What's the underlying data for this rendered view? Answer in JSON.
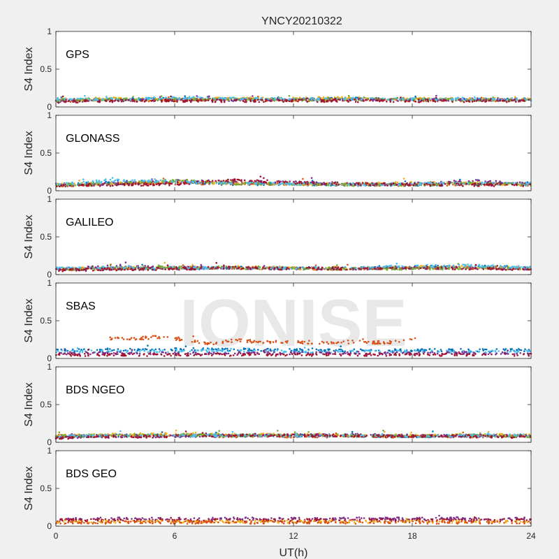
{
  "chart_data": {
    "type": "scatter",
    "title": "YNCY20210322",
    "xlabel": "UT(h)",
    "ylabel": "S4 Index",
    "xlim": [
      0,
      24
    ],
    "ylim": [
      0,
      1
    ],
    "xticks": [
      0,
      6,
      12,
      18,
      24
    ],
    "yticks": [
      0,
      0.5,
      1
    ],
    "ytick_labels": [
      "0",
      "0.5",
      "1"
    ],
    "grid": false,
    "watermark": "IONISE",
    "colors": [
      "#0072bd",
      "#d95319",
      "#edb120",
      "#7e2f8e",
      "#77ac30",
      "#4dbeee",
      "#a2142f"
    ],
    "panels": [
      {
        "label": "GPS",
        "series": [
          {
            "color": "#0072bd",
            "x": [
              0,
              3,
              6,
              9,
              12,
              15,
              18,
              21,
              24
            ],
            "y": [
              0.09,
              0.1,
              0.11,
              0.1,
              0.1,
              0.11,
              0.1,
              0.1,
              0.1
            ]
          },
          {
            "color": "#d95319",
            "x": [
              0,
              3,
              6,
              9,
              12,
              15,
              18,
              21,
              24
            ],
            "y": [
              0.08,
              0.09,
              0.09,
              0.1,
              0.09,
              0.1,
              0.09,
              0.09,
              0.09
            ]
          },
          {
            "color": "#edb120",
            "x": [
              0,
              3,
              6,
              9,
              12,
              15,
              18,
              21,
              24
            ],
            "y": [
              0.1,
              0.11,
              0.1,
              0.11,
              0.11,
              0.12,
              0.11,
              0.11,
              0.1
            ]
          },
          {
            "color": "#7e2f8e",
            "x": [
              0,
              3,
              6,
              9,
              12,
              15,
              18,
              21,
              24
            ],
            "y": [
              0.08,
              0.09,
              0.09,
              0.09,
              0.1,
              0.1,
              0.09,
              0.1,
              0.09
            ]
          },
          {
            "color": "#77ac30",
            "x": [
              0,
              3,
              6,
              9,
              12,
              15,
              18,
              21,
              24
            ],
            "y": [
              0.09,
              0.1,
              0.1,
              0.1,
              0.09,
              0.1,
              0.1,
              0.09,
              0.09
            ]
          },
          {
            "color": "#4dbeee",
            "x": [
              0,
              3,
              6,
              9,
              12,
              15,
              18,
              21,
              24
            ],
            "y": [
              0.1,
              0.1,
              0.12,
              0.11,
              0.1,
              0.11,
              0.1,
              0.1,
              0.1
            ]
          },
          {
            "color": "#a2142f",
            "x": [
              0,
              3,
              6,
              9,
              12,
              15,
              18,
              21,
              24
            ],
            "y": [
              0.07,
              0.08,
              0.08,
              0.08,
              0.08,
              0.08,
              0.08,
              0.08,
              0.08
            ]
          }
        ]
      },
      {
        "label": "GLONASS",
        "series": [
          {
            "color": "#0072bd",
            "x": [
              0,
              3,
              6,
              9,
              12,
              15,
              18,
              21,
              24
            ],
            "y": [
              0.08,
              0.12,
              0.11,
              0.09,
              0.09,
              0.08,
              0.08,
              0.09,
              0.1
            ]
          },
          {
            "color": "#d95319",
            "x": [
              0,
              3,
              6,
              9,
              12,
              15,
              18,
              21,
              24
            ],
            "y": [
              0.07,
              0.09,
              0.1,
              0.1,
              0.09,
              0.08,
              0.08,
              0.09,
              0.08
            ]
          },
          {
            "color": "#edb120",
            "x": [
              0,
              3,
              6,
              9,
              12,
              15,
              18,
              21,
              24
            ],
            "y": [
              0.08,
              0.1,
              0.12,
              0.1,
              0.09,
              0.09,
              0.1,
              0.1,
              0.09
            ]
          },
          {
            "color": "#7e2f8e",
            "x": [
              0,
              3,
              6,
              9,
              12,
              15,
              18,
              21,
              24
            ],
            "y": [
              0.07,
              0.09,
              0.13,
              0.12,
              0.11,
              0.09,
              0.09,
              0.13,
              0.09
            ]
          },
          {
            "color": "#77ac30",
            "x": [
              0,
              3,
              6,
              9,
              12,
              15,
              18,
              21,
              24
            ],
            "y": [
              0.07,
              0.1,
              0.13,
              0.1,
              0.09,
              0.08,
              0.08,
              0.1,
              0.08
            ]
          },
          {
            "color": "#4dbeee",
            "x": [
              0,
              3,
              6,
              9,
              12,
              15,
              18,
              21,
              24
            ],
            "y": [
              0.08,
              0.14,
              0.12,
              0.1,
              0.09,
              0.08,
              0.09,
              0.1,
              0.09
            ]
          },
          {
            "color": "#a2142f",
            "x": [
              0,
              3,
              6,
              9,
              12,
              15,
              18,
              21,
              24
            ],
            "y": [
              0.06,
              0.08,
              0.09,
              0.14,
              0.11,
              0.09,
              0.08,
              0.08,
              0.07
            ]
          }
        ]
      },
      {
        "label": "GALILEO",
        "series": [
          {
            "color": "#0072bd",
            "x": [
              0,
              3,
              6,
              9,
              12,
              15,
              18,
              21,
              24
            ],
            "y": [
              0.07,
              0.08,
              0.08,
              0.09,
              0.09,
              0.08,
              0.1,
              0.11,
              0.09
            ]
          },
          {
            "color": "#d95319",
            "x": [
              0,
              3,
              6,
              9,
              12,
              15,
              18,
              21,
              24
            ],
            "y": [
              0.07,
              0.08,
              0.09,
              0.09,
              0.08,
              0.08,
              0.09,
              0.09,
              0.08
            ]
          },
          {
            "color": "#edb120",
            "x": [
              0,
              3,
              6,
              9,
              12,
              15,
              18,
              21,
              24
            ],
            "y": [
              0.08,
              0.09,
              0.09,
              0.1,
              0.09,
              0.09,
              0.1,
              0.1,
              0.09
            ]
          },
          {
            "color": "#7e2f8e",
            "x": [
              0,
              3,
              6,
              9,
              12,
              15,
              18,
              21,
              24
            ],
            "y": [
              0.07,
              0.11,
              0.09,
              0.09,
              0.08,
              0.08,
              0.09,
              0.09,
              0.08
            ]
          },
          {
            "color": "#77ac30",
            "x": [
              0,
              3,
              6,
              9,
              12,
              15,
              18,
              21,
              24
            ],
            "y": [
              0.07,
              0.08,
              0.1,
              0.09,
              0.08,
              0.08,
              0.08,
              0.09,
              0.08
            ]
          },
          {
            "color": "#4dbeee",
            "x": [
              0,
              3,
              6,
              9,
              12,
              15,
              18,
              21,
              24
            ],
            "y": [
              0.08,
              0.09,
              0.09,
              0.09,
              0.09,
              0.09,
              0.11,
              0.12,
              0.09
            ]
          },
          {
            "color": "#a2142f",
            "x": [
              0,
              3,
              6,
              9,
              12,
              15,
              18,
              21,
              24
            ],
            "y": [
              0.06,
              0.07,
              0.08,
              0.09,
              0.08,
              0.08,
              0.09,
              0.08,
              0.07
            ]
          }
        ]
      },
      {
        "label": "SBAS",
        "series": [
          {
            "color": "#d95319",
            "x": [
              2.7,
              3.5,
              4.9,
              5.8,
              7.0,
              8.0,
              9.0,
              10.5,
              12.0,
              13.5,
              15.0,
              16.5,
              17.5,
              18.3
            ],
            "y": [
              0.27,
              0.25,
              0.28,
              0.27,
              0.22,
              0.19,
              0.24,
              0.22,
              0.22,
              0.21,
              0.22,
              0.21,
              0.22,
              0.3
            ]
          },
          {
            "color": "#0072bd",
            "x": [
              0,
              3,
              6,
              9,
              12,
              15,
              18,
              21,
              24
            ],
            "y": [
              0.11,
              0.11,
              0.12,
              0.12,
              0.11,
              0.11,
              0.11,
              0.11,
              0.11
            ]
          },
          {
            "color": "#4dbeee",
            "x": [
              0,
              3,
              6,
              9,
              12,
              15,
              18,
              21,
              24
            ],
            "y": [
              0.09,
              0.09,
              0.1,
              0.1,
              0.09,
              0.09,
              0.09,
              0.09,
              0.09
            ]
          },
          {
            "color": "#7e2f8e",
            "x": [
              0,
              3,
              6,
              9,
              12,
              15,
              18,
              21,
              24
            ],
            "y": [
              0.07,
              0.07,
              0.07,
              0.07,
              0.07,
              0.07,
              0.07,
              0.07,
              0.07
            ]
          },
          {
            "color": "#a2142f",
            "x": [
              0,
              3,
              6,
              9,
              12,
              15,
              18,
              21,
              24
            ],
            "y": [
              0.05,
              0.05,
              0.05,
              0.05,
              0.05,
              0.05,
              0.05,
              0.05,
              0.05
            ]
          }
        ]
      },
      {
        "label": "BDS NGEO",
        "series": [
          {
            "color": "#0072bd",
            "x": [
              0,
              3,
              6,
              9,
              12,
              15,
              18,
              21,
              24
            ],
            "y": [
              0.08,
              0.09,
              0.09,
              0.09,
              0.09,
              0.09,
              0.08,
              0.09,
              0.09
            ]
          },
          {
            "color": "#d95319",
            "x": [
              0,
              3,
              6,
              9,
              12,
              15,
              18,
              21,
              24
            ],
            "y": [
              0.09,
              0.08,
              0.09,
              0.08,
              0.08,
              0.08,
              0.08,
              0.08,
              0.08
            ]
          },
          {
            "color": "#edb120",
            "x": [
              0,
              3,
              6,
              9,
              12,
              15,
              18,
              21,
              24
            ],
            "y": [
              0.09,
              0.1,
              0.11,
              0.1,
              0.1,
              0.09,
              0.09,
              0.1,
              0.09
            ]
          },
          {
            "color": "#7e2f8e",
            "x": [
              0,
              3,
              6,
              9,
              12,
              15,
              18,
              21,
              24
            ],
            "y": [
              0.07,
              0.08,
              0.08,
              0.09,
              0.09,
              0.1,
              0.08,
              0.09,
              0.08
            ]
          },
          {
            "color": "#77ac30",
            "x": [
              0,
              3,
              6,
              9,
              12,
              15,
              18,
              21,
              24
            ],
            "y": [
              0.08,
              0.09,
              0.1,
              0.09,
              0.09,
              0.09,
              0.08,
              0.09,
              0.08
            ]
          },
          {
            "color": "#4dbeee",
            "x": [
              0,
              3,
              6,
              9,
              12,
              15,
              18,
              21,
              24
            ],
            "y": [
              0.08,
              0.09,
              0.09,
              0.09,
              0.09,
              0.09,
              0.08,
              0.09,
              0.09
            ]
          },
          {
            "color": "#a2142f",
            "x": [
              0,
              3,
              6,
              9,
              12,
              15,
              18,
              21,
              24
            ],
            "y": [
              0.06,
              0.07,
              0.08,
              0.09,
              0.09,
              0.09,
              0.08,
              0.08,
              0.07
            ]
          }
        ]
      },
      {
        "label": "BDS GEO",
        "series": [
          {
            "color": "#7e2f8e",
            "x": [
              0,
              3,
              6,
              9,
              12,
              15,
              18,
              21,
              24
            ],
            "y": [
              0.1,
              0.1,
              0.1,
              0.1,
              0.1,
              0.1,
              0.1,
              0.1,
              0.1
            ]
          },
          {
            "color": "#a2142f",
            "x": [
              0,
              3,
              6,
              9,
              12,
              15,
              18,
              21,
              24
            ],
            "y": [
              0.08,
              0.08,
              0.08,
              0.08,
              0.08,
              0.08,
              0.08,
              0.08,
              0.08
            ]
          },
          {
            "color": "#edb120",
            "x": [
              0,
              3,
              6,
              9,
              12,
              15,
              18,
              21,
              24
            ],
            "y": [
              0.06,
              0.06,
              0.06,
              0.06,
              0.06,
              0.06,
              0.06,
              0.06,
              0.06
            ]
          },
          {
            "color": "#d95319",
            "x": [
              0,
              3,
              6,
              9,
              12,
              15,
              18,
              21,
              24
            ],
            "y": [
              0.05,
              0.05,
              0.05,
              0.05,
              0.05,
              0.05,
              0.05,
              0.05,
              0.05
            ]
          }
        ]
      }
    ]
  }
}
